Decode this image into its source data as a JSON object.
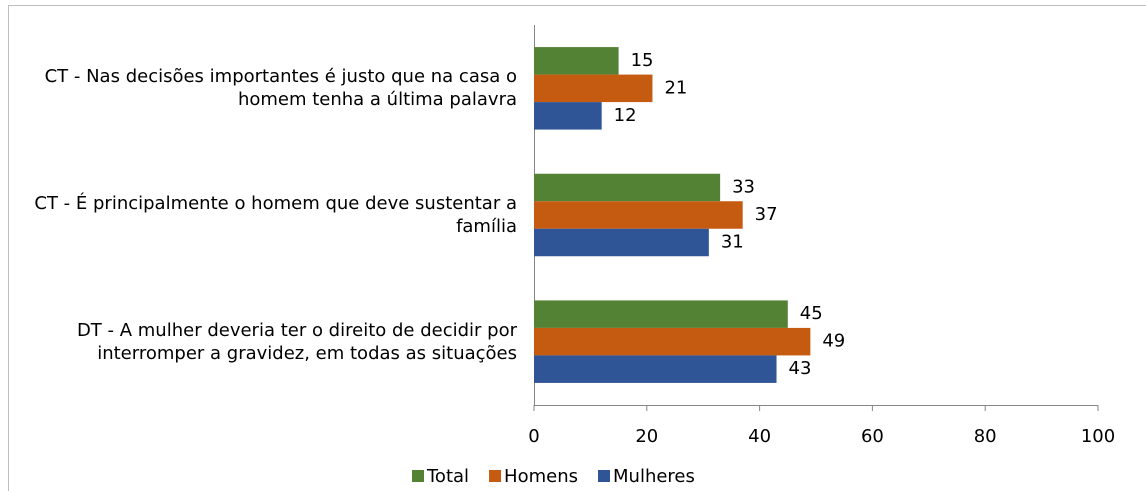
{
  "chart_data": {
    "type": "hbar",
    "categories": [
      "CT - Nas decisões importantes é justo que na casa o homem tenha a última palavra",
      "CT - É principalmente o homem que deve sustentar a família",
      "DT - A mulher deveria ter o direito de decidir por interromper a gravidez, em todas as situações"
    ],
    "series": [
      {
        "name": "Total",
        "color": "#548235",
        "values": [
          15,
          33,
          45
        ]
      },
      {
        "name": "Homens",
        "color": "#c55a11",
        "values": [
          21,
          37,
          49
        ]
      },
      {
        "name": "Mulheres",
        "color": "#2f5597",
        "values": [
          12,
          31,
          43
        ]
      }
    ],
    "xlim": [
      0,
      100
    ],
    "xticks": [
      0,
      20,
      40,
      60,
      80,
      100
    ],
    "legend": "bottom"
  }
}
